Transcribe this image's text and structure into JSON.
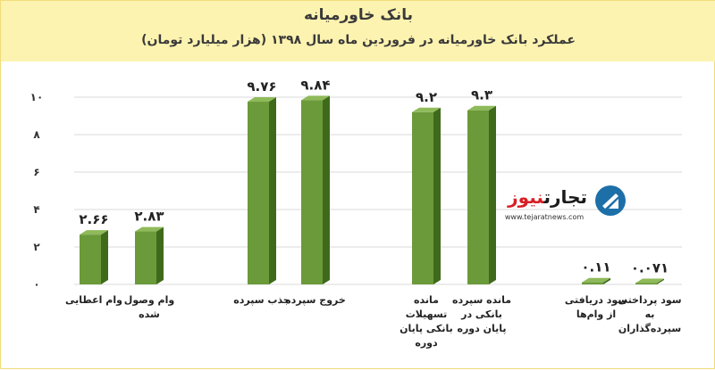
{
  "header": {
    "title": "بانک خاورمیانه",
    "subtitle": "عملکرد بانک خاورمیانه در فروردین ماه سال ۱۳۹۸ (هزار میلیارد تومان)"
  },
  "watermark": {
    "brand_part1": "تجارت",
    "brand_part2": "نیوز",
    "url": "www.tejaratnews.com",
    "icon": "tejaratnews-logo-icon"
  },
  "colors": {
    "header_bg": "#fdf3b0",
    "bar_front": "#6b9a3a",
    "bar_side": "#3f6a1c",
    "bar_top": "#8fba5a",
    "grid": "#d9d9d9"
  },
  "chart_data": {
    "type": "bar",
    "title": "بانک خاورمیانه",
    "subtitle": "عملکرد بانک خاورمیانه در فروردین ماه سال ۱۳۹۸ (هزار میلیارد تومان)",
    "ylim": [
      0,
      10
    ],
    "yticks": [
      0,
      2,
      4,
      6,
      8,
      10
    ],
    "ytick_labels": [
      "۰",
      "۲",
      "۴",
      "۶",
      "۸",
      "۱۰"
    ],
    "grid": true,
    "bars": [
      {
        "category": "وام اعطایی",
        "value": 2.66,
        "value_label": "۲.۶۶"
      },
      {
        "category": "وام وصول شده",
        "value": 2.83,
        "value_label": "۲.۸۳"
      },
      {
        "category": "جذب سپرده",
        "value": 9.76,
        "value_label": "۹.۷۶"
      },
      {
        "category": "خروج سپرده",
        "value": 9.84,
        "value_label": "۹.۸۴"
      },
      {
        "category": "مانده تسهیلات بانکی پایان دوره",
        "value": 9.2,
        "value_label": "۹.۲"
      },
      {
        "category": "مانده سپرده بانکی در پایان دوره",
        "value": 9.3,
        "value_label": "۹.۳"
      },
      {
        "category": "سود دریافتی از وام‌ها",
        "value": 0.11,
        "value_label": "۰.۱۱"
      },
      {
        "category": "سود پرداختی به سپرده‌گذاران",
        "value": 0.071,
        "value_label": "۰.۰۷۱"
      }
    ]
  }
}
